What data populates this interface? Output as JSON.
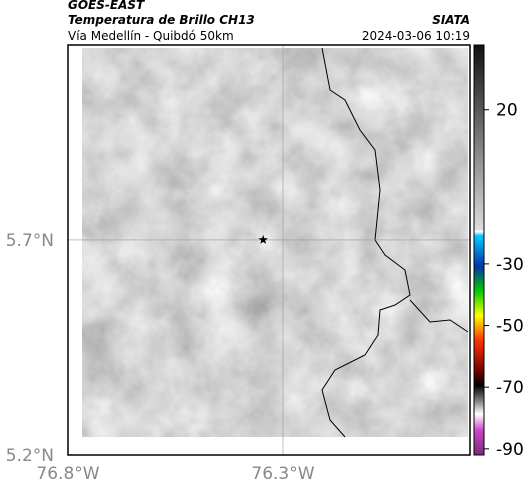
{
  "header": {
    "source": "GOES-EAST",
    "title": "Temperatura de Brillo CH13",
    "subtitle": "Vía Medellín - Quibdó 50km",
    "brand": "SIATA",
    "timestamp": "2024-03-06 10:19"
  },
  "map": {
    "xlim": [
      -76.8,
      -75.865
    ],
    "ylim": [
      5.2,
      6.153
    ],
    "xticks": [
      {
        "value": -76.8,
        "label": "76.8°W"
      },
      {
        "value": -76.3,
        "label": "76.3°W"
      }
    ],
    "yticks": [
      {
        "value": 5.7,
        "label": "5.7°N"
      },
      {
        "value": 5.2,
        "label": "5.2°N"
      }
    ],
    "marker": {
      "lon": -76.346,
      "lat": 5.7
    }
  },
  "colorbar": {
    "lim": [
      -92,
      41
    ],
    "ticks": [
      20,
      -30,
      -50,
      -70,
      -90
    ]
  }
}
